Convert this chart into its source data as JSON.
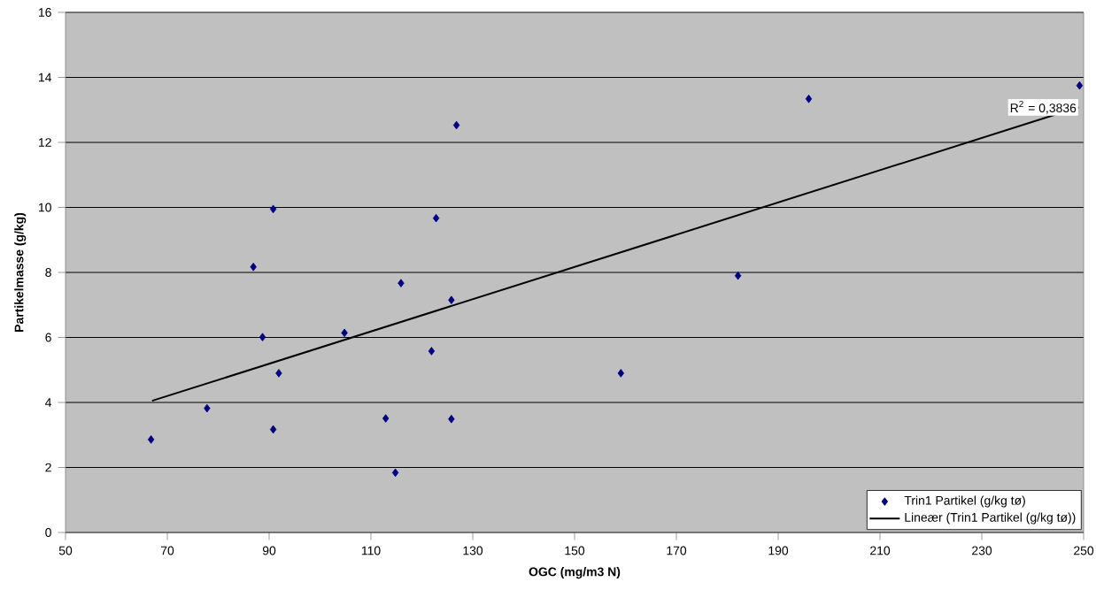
{
  "chart_data": {
    "type": "scatter",
    "xlabel": "OGC (mg/m3 N)",
    "ylabel": "Partikelmasse (g/kg)",
    "xlim": [
      50,
      250
    ],
    "xticks": [
      50,
      70,
      90,
      110,
      130,
      150,
      170,
      190,
      210,
      230,
      250
    ],
    "ylim": [
      0,
      16
    ],
    "yticks": [
      0,
      2,
      4,
      6,
      8,
      10,
      12,
      14,
      16
    ],
    "grid": "y",
    "legend": "bottom right",
    "marker": "diamond",
    "series": [
      {
        "name": "Trin1 Partikel (g/kg tø)",
        "color": "#000080",
        "x": [
          66.8,
          77.8,
          86.9,
          88.7,
          90.8,
          90.8,
          91.9,
          104.8,
          112.9,
          114.8,
          115.9,
          121.9,
          122.8,
          125.8,
          125.8,
          126.8,
          159.1,
          182.1,
          196.0,
          249.2
        ],
        "values": [
          2.86,
          3.82,
          8.17,
          6.01,
          9.95,
          3.17,
          4.9,
          6.14,
          3.51,
          1.84,
          7.67,
          5.58,
          9.67,
          7.15,
          3.49,
          12.53,
          4.9,
          7.9,
          13.34,
          13.75
        ]
      },
      {
        "name": "Lineær (Trin1 Partikel (g/kg tø))",
        "type": "line",
        "color": "#000000",
        "marker": "none",
        "line_style": "solid",
        "x": [
          67,
          249
        ],
        "values": [
          4.05,
          13.08
        ]
      }
    ],
    "annotations": [
      {
        "text": "R$^{2}$ = 0,3836",
        "x": 249,
        "y": 13.08
      }
    ]
  }
}
